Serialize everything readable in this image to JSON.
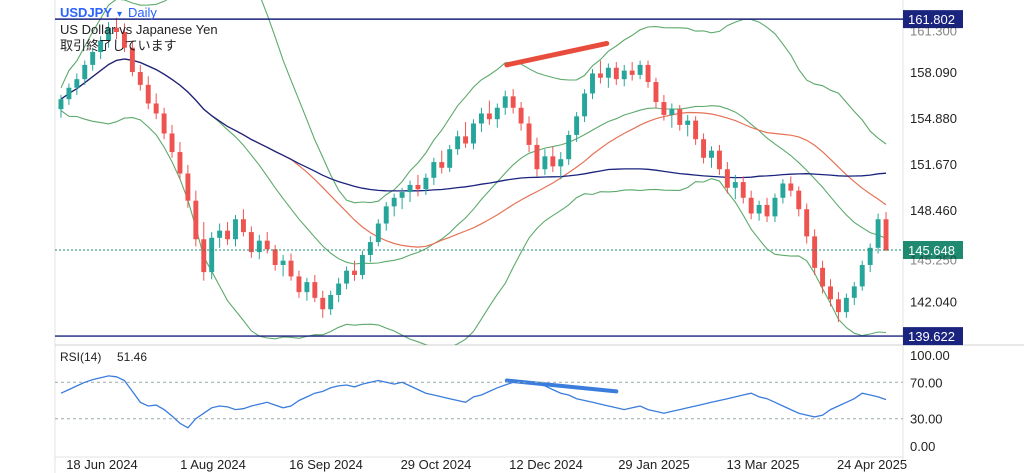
{
  "chart_data": {
    "type": "candlestick",
    "symbol": "USDJPY",
    "interval": "Daily",
    "name": "US Dollar vs Japanese Yen",
    "status": "取引終了しています",
    "price_axis": {
      "range": [
        139.0,
        163.0
      ],
      "ticks": [
        "158.090",
        "154.880",
        "151.670",
        "148.460",
        "142.040"
      ],
      "hidden_ticks": [
        "161.300",
        "145.250"
      ]
    },
    "horizontal_levels": [
      {
        "label": "161.802",
        "value": 161.802,
        "color": "#1a237e"
      },
      {
        "label": "139.622",
        "value": 139.622,
        "color": "#1a237e"
      }
    ],
    "last_price": {
      "label": "145.648",
      "value": 145.648,
      "color": "#1f8a70"
    },
    "x_axis": {
      "ticks": [
        "18 Jun 2024",
        "1 Aug 2024",
        "16 Sep 2024",
        "29 Oct 2024",
        "12 Dec 2024",
        "29 Jan 2025",
        "13 Mar 2025",
        "24 Apr 2025"
      ]
    },
    "overlays": [
      {
        "kind": "sma-long",
        "color": "#1a237e"
      },
      {
        "kind": "sma-short",
        "color": "#e57357"
      },
      {
        "kind": "bollinger-bands",
        "color": "#5daa6c"
      }
    ],
    "annotations": [
      {
        "kind": "trendline",
        "pane": "price",
        "color": "#e74c3c",
        "from": [
          "2024-11-25",
          158.6
        ],
        "to": [
          "2025-01-06",
          160.1
        ]
      },
      {
        "kind": "trendline",
        "pane": "rsi",
        "color": "#3b7ddd",
        "from": [
          "2024-11-25",
          72
        ],
        "to": [
          "2025-01-10",
          60
        ]
      }
    ],
    "rsi": {
      "label": "RSI(14)",
      "value": "51.46",
      "range": [
        0,
        100
      ],
      "ticks": [
        "100.00",
        "70.00",
        "30.00",
        "0.00"
      ],
      "guides": [
        70,
        30
      ],
      "color": "#3b7ddd",
      "values": [
        58,
        62,
        66,
        70,
        73,
        75,
        77,
        76,
        72,
        60,
        48,
        44,
        45,
        40,
        33,
        25,
        20,
        30,
        36,
        42,
        44,
        43,
        40,
        41,
        44,
        46,
        48,
        45,
        42,
        44,
        50,
        54,
        58,
        60,
        64,
        66,
        67,
        65,
        68,
        70,
        72,
        70,
        68,
        70,
        66,
        62,
        58,
        56,
        54,
        52,
        50,
        48,
        54,
        56,
        60,
        64,
        67,
        70,
        72,
        70,
        68,
        66,
        62,
        58,
        56,
        52,
        50,
        48,
        46,
        44,
        42,
        40,
        42,
        44,
        40,
        38,
        36,
        38,
        40,
        42,
        44,
        46,
        48,
        50,
        52,
        54,
        56,
        58,
        54,
        52,
        48,
        44,
        40,
        36,
        34,
        32,
        34,
        40,
        44,
        48,
        52,
        58,
        56,
        54,
        51
      ]
    },
    "candles": [
      [
        155.5,
        156.5,
        154.9,
        156.2
      ],
      [
        156.2,
        157.3,
        155.8,
        157.0
      ],
      [
        157.0,
        158.0,
        156.5,
        157.6
      ],
      [
        157.6,
        158.9,
        157.2,
        158.6
      ],
      [
        158.6,
        159.8,
        158.2,
        159.5
      ],
      [
        159.5,
        160.6,
        159.0,
        160.3
      ],
      [
        160.3,
        161.6,
        159.8,
        161.2
      ],
      [
        161.2,
        161.9,
        160.4,
        160.9
      ],
      [
        160.9,
        161.5,
        159.5,
        159.8
      ],
      [
        159.8,
        160.2,
        157.8,
        158.1
      ],
      [
        158.1,
        158.6,
        156.8,
        157.2
      ],
      [
        157.2,
        157.8,
        155.5,
        155.9
      ],
      [
        155.9,
        156.6,
        154.8,
        155.2
      ],
      [
        155.2,
        155.6,
        153.4,
        153.8
      ],
      [
        153.8,
        154.4,
        152.1,
        152.5
      ],
      [
        152.5,
        153.2,
        150.6,
        151.0
      ],
      [
        151.0,
        151.6,
        148.6,
        149.1
      ],
      [
        149.1,
        149.8,
        145.9,
        146.4
      ],
      [
        146.4,
        147.6,
        143.5,
        144.1
      ],
      [
        144.1,
        146.9,
        143.6,
        146.5
      ],
      [
        146.5,
        147.5,
        145.8,
        147.0
      ],
      [
        147.0,
        147.6,
        146.0,
        146.4
      ],
      [
        146.4,
        148.1,
        145.9,
        147.8
      ],
      [
        147.8,
        148.5,
        146.6,
        146.9
      ],
      [
        146.9,
        147.3,
        145.1,
        145.5
      ],
      [
        145.5,
        146.7,
        145.0,
        146.3
      ],
      [
        146.3,
        146.9,
        145.4,
        145.7
      ],
      [
        145.7,
        146.0,
        144.2,
        144.6
      ],
      [
        144.6,
        145.3,
        143.8,
        144.9
      ],
      [
        144.9,
        145.4,
        143.5,
        143.8
      ],
      [
        143.8,
        144.2,
        142.3,
        142.7
      ],
      [
        142.7,
        143.7,
        142.1,
        143.4
      ],
      [
        143.4,
        143.9,
        142.0,
        142.3
      ],
      [
        142.3,
        142.8,
        140.9,
        141.5
      ],
      [
        141.5,
        142.8,
        141.1,
        142.5
      ],
      [
        142.5,
        143.7,
        142.0,
        143.3
      ],
      [
        143.3,
        144.5,
        142.9,
        144.2
      ],
      [
        144.2,
        144.9,
        143.5,
        143.9
      ],
      [
        143.9,
        145.6,
        143.6,
        145.3
      ],
      [
        145.3,
        146.6,
        144.8,
        146.2
      ],
      [
        146.2,
        147.8,
        145.9,
        147.5
      ],
      [
        147.5,
        149.0,
        147.0,
        148.7
      ],
      [
        148.7,
        149.6,
        148.0,
        149.3
      ],
      [
        149.3,
        150.0,
        148.5,
        149.7
      ],
      [
        149.7,
        150.5,
        149.0,
        150.2
      ],
      [
        150.2,
        150.9,
        149.4,
        149.9
      ],
      [
        149.9,
        151.0,
        149.5,
        150.7
      ],
      [
        150.7,
        152.1,
        150.2,
        151.8
      ],
      [
        151.8,
        152.6,
        151.0,
        151.4
      ],
      [
        151.4,
        153.0,
        151.1,
        152.7
      ],
      [
        152.7,
        154.0,
        152.3,
        153.6
      ],
      [
        153.6,
        154.6,
        152.8,
        153.1
      ],
      [
        153.1,
        154.8,
        152.7,
        154.5
      ],
      [
        154.5,
        155.6,
        153.9,
        155.2
      ],
      [
        155.2,
        156.1,
        154.4,
        154.8
      ],
      [
        154.8,
        155.9,
        154.2,
        155.6
      ],
      [
        155.6,
        156.8,
        155.1,
        156.4
      ],
      [
        156.4,
        156.9,
        155.2,
        155.6
      ],
      [
        155.6,
        156.0,
        154.0,
        154.5
      ],
      [
        154.5,
        155.0,
        152.5,
        153.0
      ],
      [
        153.0,
        153.5,
        150.8,
        151.3
      ],
      [
        151.3,
        152.7,
        150.9,
        152.2
      ],
      [
        152.2,
        152.9,
        151.1,
        151.5
      ],
      [
        151.5,
        152.5,
        150.6,
        152.0
      ],
      [
        152.0,
        154.0,
        151.6,
        153.7
      ],
      [
        153.7,
        155.3,
        153.2,
        155.0
      ],
      [
        155.0,
        156.9,
        154.6,
        156.6
      ],
      [
        156.6,
        158.3,
        156.2,
        158.0
      ],
      [
        158.0,
        158.9,
        157.3,
        157.7
      ],
      [
        157.7,
        158.7,
        157.0,
        158.4
      ],
      [
        158.4,
        158.8,
        157.2,
        157.6
      ],
      [
        157.6,
        158.6,
        157.1,
        158.2
      ],
      [
        158.2,
        158.8,
        157.5,
        157.9
      ],
      [
        157.9,
        158.9,
        157.6,
        158.6
      ],
      [
        158.6,
        158.9,
        157.0,
        157.4
      ],
      [
        157.4,
        157.7,
        155.6,
        156.0
      ],
      [
        156.0,
        156.5,
        154.7,
        155.1
      ],
      [
        155.1,
        155.9,
        154.2,
        155.5
      ],
      [
        155.5,
        155.8,
        154.0,
        154.4
      ],
      [
        154.4,
        155.1,
        153.6,
        154.7
      ],
      [
        154.7,
        155.0,
        153.0,
        153.4
      ],
      [
        153.4,
        153.8,
        151.7,
        152.1
      ],
      [
        152.1,
        152.9,
        151.4,
        152.6
      ],
      [
        152.6,
        153.0,
        150.9,
        151.3
      ],
      [
        151.3,
        151.8,
        149.6,
        150.0
      ],
      [
        150.0,
        150.9,
        149.2,
        150.4
      ],
      [
        150.4,
        150.8,
        148.9,
        149.3
      ],
      [
        149.3,
        149.8,
        147.8,
        148.2
      ],
      [
        148.2,
        149.1,
        147.7,
        148.8
      ],
      [
        148.8,
        149.3,
        147.6,
        148.0
      ],
      [
        148.0,
        149.6,
        147.6,
        149.3
      ],
      [
        149.3,
        150.6,
        148.9,
        150.3
      ],
      [
        150.3,
        150.8,
        149.4,
        149.8
      ],
      [
        149.8,
        150.1,
        148.0,
        148.5
      ],
      [
        148.5,
        148.9,
        146.1,
        146.6
      ],
      [
        146.6,
        147.1,
        143.9,
        144.4
      ],
      [
        144.4,
        144.9,
        142.6,
        143.1
      ],
      [
        143.1,
        143.6,
        141.7,
        142.2
      ],
      [
        142.2,
        142.7,
        140.6,
        141.3
      ],
      [
        141.3,
        142.6,
        140.9,
        142.3
      ],
      [
        142.3,
        143.4,
        141.8,
        143.1
      ],
      [
        143.1,
        144.9,
        142.8,
        144.6
      ],
      [
        144.6,
        146.1,
        144.1,
        145.8
      ],
      [
        145.8,
        148.2,
        145.4,
        147.8
      ],
      [
        147.8,
        148.3,
        145.7,
        145.6
      ]
    ]
  }
}
